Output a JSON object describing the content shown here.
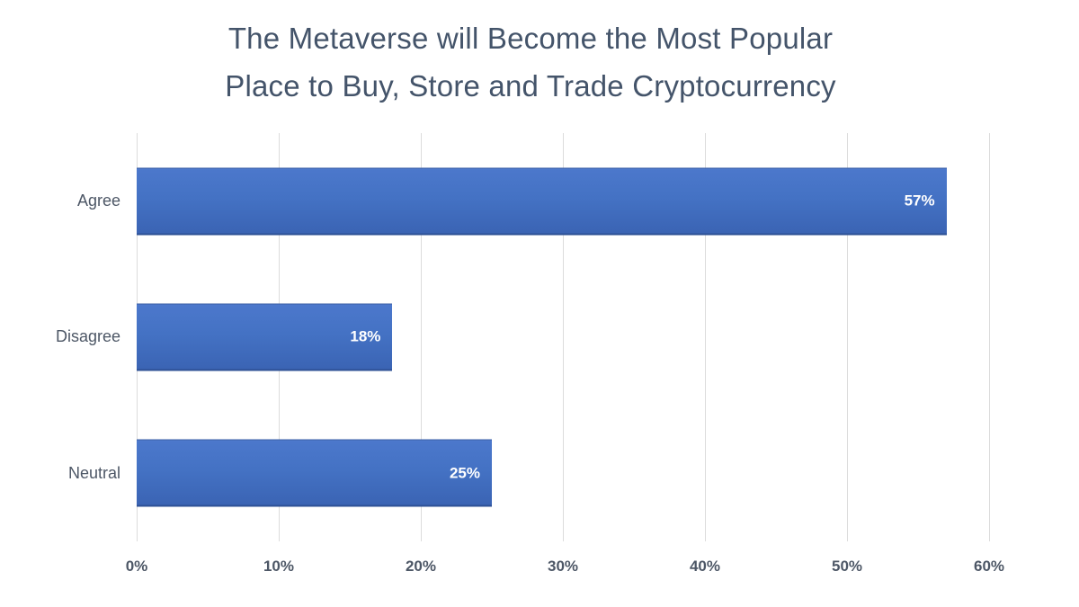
{
  "chart_data": {
    "type": "bar",
    "orientation": "horizontal",
    "title": "The Metaverse will Become the Most Popular Place to Buy, Store and Trade Cryptocurrency",
    "title_lines": [
      "The Metaverse will Become the Most Popular",
      "Place to Buy, Store and Trade Cryptocurrency"
    ],
    "categories": [
      "Agree",
      "Disagree",
      "Neutral"
    ],
    "values": [
      57,
      18,
      25
    ],
    "data_labels": [
      "57%",
      "18%",
      "25%"
    ],
    "x_ticks": [
      "0%",
      "10%",
      "20%",
      "30%",
      "40%",
      "50%",
      "60%"
    ],
    "xlim": [
      0,
      60
    ],
    "xlabel": "",
    "ylabel": "",
    "legend": "none",
    "grid": "vertical",
    "colors": {
      "bar": "#4472C4",
      "bar_gradient_top": "#4C78CC",
      "bar_gradient_bottom": "#3A63B3",
      "title_text": "#44546A",
      "axis_text": "#4D5766",
      "data_label_text": "#FFFFFF",
      "gridline": "#DCDCDC",
      "background": "#FFFFFF"
    }
  }
}
